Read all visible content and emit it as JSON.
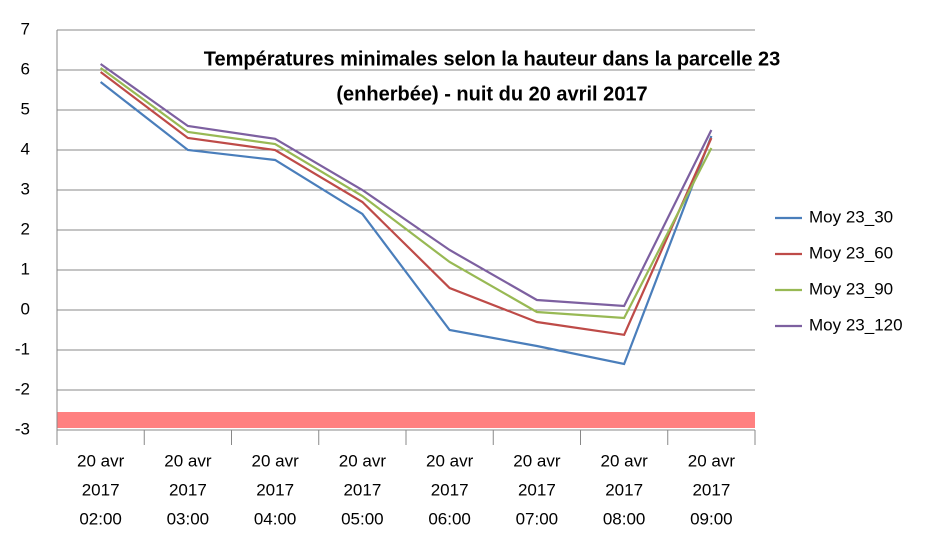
{
  "chart_data": {
    "type": "line",
    "title": [
      "Températures minimales selon la hauteur dans la parcelle 23",
      "(enherbée) - nuit du 20 avril 2017"
    ],
    "categories": [
      [
        "20 avr",
        "2017",
        "02:00"
      ],
      [
        "20 avr",
        "2017",
        "03:00"
      ],
      [
        "20 avr",
        "2017",
        "04:00"
      ],
      [
        "20 avr",
        "2017",
        "05:00"
      ],
      [
        "20 avr",
        "2017",
        "06:00"
      ],
      [
        "20 avr",
        "2017",
        "07:00"
      ],
      [
        "20 avr",
        "2017",
        "08:00"
      ],
      [
        "20 avr",
        "2017",
        "09:00"
      ]
    ],
    "series": [
      {
        "name": "Moy 23_30",
        "color": "#4a7ebb",
        "values": [
          5.7,
          4.0,
          3.75,
          2.4,
          -0.5,
          -0.9,
          -1.35,
          4.35
        ]
      },
      {
        "name": "Moy 23_60",
        "color": "#be4b48",
        "values": [
          5.95,
          4.3,
          4.0,
          2.7,
          0.55,
          -0.3,
          -0.62,
          4.3
        ]
      },
      {
        "name": "Moy 23_90",
        "color": "#98b954",
        "values": [
          6.05,
          4.45,
          4.15,
          2.85,
          1.2,
          -0.05,
          -0.2,
          4.05
        ]
      },
      {
        "name": "Moy 23_120",
        "color": "#7d60a0",
        "values": [
          6.15,
          4.6,
          4.28,
          3.0,
          1.5,
          0.25,
          0.1,
          4.5
        ]
      }
    ],
    "ylim": [
      -3,
      7
    ],
    "yticks": [
      -3,
      -2,
      -1,
      0,
      1,
      2,
      3,
      4,
      5,
      6,
      7
    ],
    "grid": true,
    "legend": "right",
    "band": {
      "range": [
        -2.95,
        -2.55
      ],
      "color": "#ff8080"
    }
  }
}
